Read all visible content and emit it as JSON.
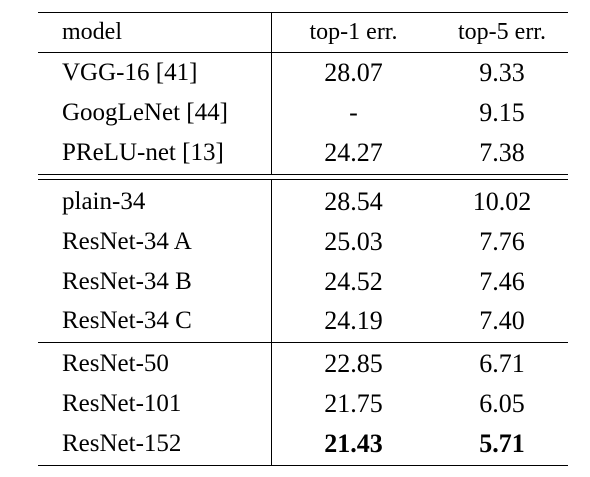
{
  "table": {
    "columns": [
      "model",
      "top-1 err.",
      "top-5 err."
    ],
    "groups": [
      {
        "rows": [
          {
            "model": "VGG-16 [41]",
            "top1": "28.07",
            "top5": "9.33"
          },
          {
            "model": "GoogLeNet [44]",
            "top1": "-",
            "top5": "9.15"
          },
          {
            "model": "PReLU-net [13]",
            "top1": "24.27",
            "top5": "7.38"
          }
        ]
      },
      {
        "rows": [
          {
            "model": "plain-34",
            "top1": "28.54",
            "top5": "10.02"
          },
          {
            "model": "ResNet-34 A",
            "top1": "25.03",
            "top5": "7.76"
          },
          {
            "model": "ResNet-34 B",
            "top1": "24.52",
            "top5": "7.46"
          },
          {
            "model": "ResNet-34 C",
            "top1": "24.19",
            "top5": "7.40"
          }
        ]
      },
      {
        "rows": [
          {
            "model": "ResNet-50",
            "top1": "22.85",
            "top5": "6.71"
          },
          {
            "model": "ResNet-101",
            "top1": "21.75",
            "top5": "6.05"
          },
          {
            "model": "ResNet-152",
            "top1": "21.43",
            "top5": "5.71",
            "bold": true
          }
        ]
      }
    ]
  }
}
